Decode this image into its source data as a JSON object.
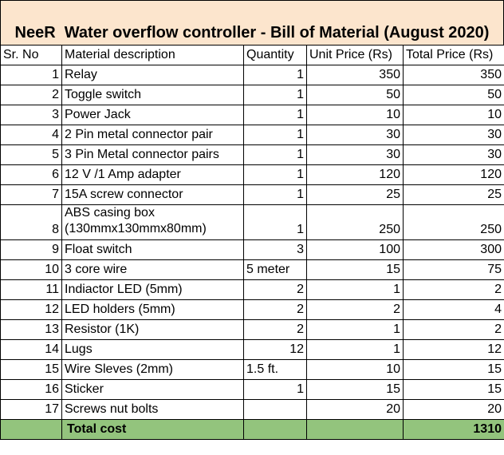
{
  "title": "NeeR  Water overflow controller - Bill of Material (August 2020)",
  "headers": [
    "Sr. No",
    "Material description",
    "Quantity",
    "Unit Price (Rs)",
    "Total Price (Rs)"
  ],
  "rows": [
    {
      "sr": "1",
      "desc": "Relay",
      "qty": "1",
      "unit": "350",
      "total": "350"
    },
    {
      "sr": "2",
      "desc": "Toggle switch",
      "qty": "1",
      "unit": "50",
      "total": "50"
    },
    {
      "sr": "3",
      "desc": "Power Jack",
      "qty": "1",
      "unit": "10",
      "total": "10"
    },
    {
      "sr": "4",
      "desc": "2 Pin metal connector pair",
      "qty": "1",
      "unit": "30",
      "total": "30"
    },
    {
      "sr": "5",
      "desc": "3 Pin Metal connector pairs",
      "qty": "1",
      "unit": "30",
      "total": "30"
    },
    {
      "sr": "6",
      "desc": "12 V /1 Amp adapter",
      "qty": "1",
      "unit": "120",
      "total": "120"
    },
    {
      "sr": "7",
      "desc": "15A screw connector",
      "qty": "1",
      "unit": "25",
      "total": "25"
    },
    {
      "sr": "8",
      "desc": "ABS casing box (130mmx130mmx80mm)",
      "qty": "1",
      "unit": "250",
      "total": "250"
    },
    {
      "sr": "9",
      "desc": "Float switch",
      "qty": "3",
      "unit": "100",
      "total": "300"
    },
    {
      "sr": "10",
      "desc": "3 core wire",
      "qty": "5 meter",
      "unit": "15",
      "total": "75"
    },
    {
      "sr": "11",
      "desc": "Indiactor LED (5mm)",
      "qty": "2",
      "unit": "1",
      "total": "2"
    },
    {
      "sr": "12",
      "desc": "LED holders (5mm)",
      "qty": "2",
      "unit": "2",
      "total": "4"
    },
    {
      "sr": "13",
      "desc": "Resistor (1K)",
      "qty": "2",
      "unit": "1",
      "total": "2"
    },
    {
      "sr": "14",
      "desc": "Lugs",
      "qty": "12",
      "unit": "1",
      "total": "12"
    },
    {
      "sr": "15",
      "desc": "Wire Sleves (2mm)",
      "qty": "1.5 ft.",
      "unit": "10",
      "total": "15"
    },
    {
      "sr": "16",
      "desc": "Sticker",
      "qty": "1",
      "unit": "15",
      "total": "15"
    },
    {
      "sr": "17",
      "desc": "Screws nut bolts",
      "qty": "",
      "unit": "20",
      "total": "20"
    }
  ],
  "total": {
    "label": "Total cost",
    "value": "1310"
  },
  "colors": {
    "title_bg": "#fce5cd",
    "total_bg": "#93c47d"
  }
}
